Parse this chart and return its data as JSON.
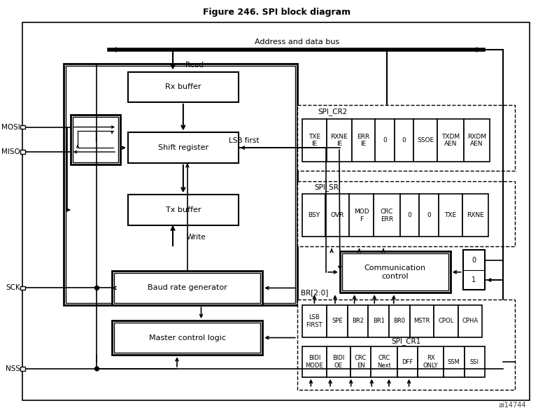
{
  "title": "Figure 246. SPI block diagram",
  "bg_color": "#ffffff",
  "watermark": "ai14744",
  "spi_cr2_label": "SPI_CR2",
  "spi_cr2_cells": [
    "TXE\nIE",
    "RXNE\nIE",
    "ERR\nIE",
    "0",
    "0",
    "SSOE",
    "TXDM\nAEN",
    "RXDM\nAEN"
  ],
  "spi_sr_label": "SPI_SR",
  "spi_sr_cells": [
    "BSY",
    "OVR",
    "MOD\nF",
    "CRC\nERR",
    "0",
    "0",
    "TXE",
    "RXNE"
  ],
  "spi_cr1_label": "SPI_CR1",
  "spi_cr1_row1_cells": [
    "LSB\nFIRST",
    "SPE",
    "BR2",
    "BR1",
    "BR0",
    "MSTR",
    "CPOL",
    "CPHA"
  ],
  "spi_cr1_row2_cells": [
    "BIDI\nMODE",
    "BIDI\nOE",
    "CRC\nEN",
    "CRC\nNext",
    "DFF",
    "RX\nONLY",
    "SSM",
    "SSI"
  ],
  "box_rx_buffer": "Rx buffer",
  "box_shift_register": "Shift register",
  "box_tx_buffer": "Tx buffer",
  "box_baud_rate": "Baud rate generator",
  "box_master_control": "Master control logic",
  "box_comm_control": "Communication\ncontrol",
  "label_address_bus": "Address and data bus",
  "label_read": "Read",
  "label_write": "Write",
  "label_lsb_first": "LSB first",
  "label_br": "BR[2:0]"
}
